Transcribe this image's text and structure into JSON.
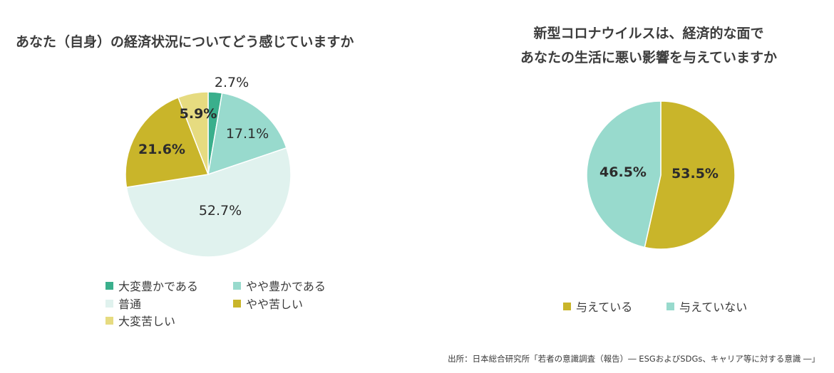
{
  "source": "出所：日本総合研究所「若者の意識調査（報告）― ESGおよびSDGs、キャリア等に対する意識 ―」",
  "chart_data": [
    {
      "type": "pie",
      "title": "あなた（自身）の経済状況についてどう感じていますか",
      "slices": [
        {
          "label": "大変豊かである",
          "value": 2.7,
          "value_label": "2.7%",
          "color": "#3aaf8c"
        },
        {
          "label": "やや豊かである",
          "value": 17.1,
          "value_label": "17.1%",
          "color": "#98dacd"
        },
        {
          "label": "普通",
          "value": 52.7,
          "value_label": "52.7%",
          "color": "#e0f2ee"
        },
        {
          "label": "やや苦しい",
          "value": 21.6,
          "value_label": "21.6%",
          "color": "#c9b52a"
        },
        {
          "label": "大変苦しい",
          "value": 5.9,
          "value_label": "5.9%",
          "color": "#e6db80"
        }
      ],
      "start_angle_deg": 0,
      "direction": "clockwise",
      "legend_position": "bottom"
    },
    {
      "type": "pie",
      "title": "新型コロナウイルスは、経済的な面で\nあなたの生活に悪い影響を与えていますか",
      "title_lines": [
        "新型コロナウイルスは、経済的な面で",
        "あなたの生活に悪い影響を与えていますか"
      ],
      "slices": [
        {
          "label": "与えている",
          "value": 53.5,
          "value_label": "53.5%",
          "color": "#c9b52a"
        },
        {
          "label": "与えていない",
          "value": 46.5,
          "value_label": "46.5%",
          "color": "#98dacd"
        }
      ],
      "start_angle_deg": 0,
      "direction": "clockwise",
      "legend_position": "bottom"
    }
  ]
}
